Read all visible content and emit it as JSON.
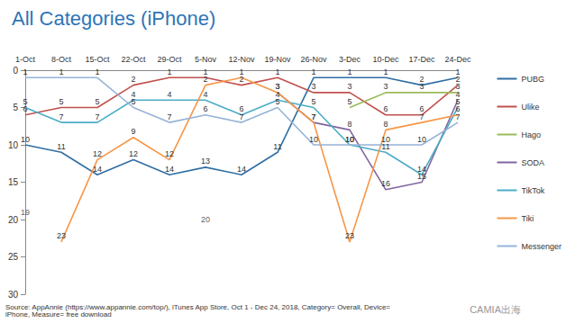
{
  "chart_data": {
    "type": "line",
    "title": "All Categories (iPhone)",
    "footnote": "Source: AppAnnie (https://www.appannie.com/top/), iTunes App Store, Oct 1 - Dec 24, 2018, Category= Overall, Device= iPhone, Measure= free download",
    "watermark": "CAMIA出海",
    "categories": [
      "1-Oct",
      "8-Oct",
      "15-Oct",
      "22-Oct",
      "29-Oct",
      "5-Nov",
      "12-Nov",
      "19-Nov",
      "26-Nov",
      "3-Dec",
      "10-Dec",
      "17-Dec",
      "24-Dec"
    ],
    "series": [
      {
        "name": "PUBG",
        "color": "#2f6ea3",
        "values": [
          10,
          11,
          14,
          12,
          14,
          13,
          14,
          11,
          1,
          1,
          1,
          2,
          1
        ]
      },
      {
        "name": "Ulike",
        "color": "#c0504d",
        "values": [
          6,
          5,
          5,
          2,
          1,
          1,
          2,
          1,
          3,
          3,
          6,
          6,
          2
        ]
      },
      {
        "name": "Hago",
        "color": "#9bbb59",
        "values": [
          null,
          null,
          null,
          null,
          null,
          null,
          null,
          null,
          null,
          5,
          3,
          3,
          3
        ]
      },
      {
        "name": "SODA",
        "color": "#8064a2",
        "values": [
          null,
          null,
          null,
          null,
          null,
          null,
          null,
          3,
          7,
          8,
          16,
          15,
          4
        ]
      },
      {
        "name": "TikTok",
        "color": "#4bacc6",
        "values": [
          5,
          7,
          7,
          4,
          4,
          4,
          6,
          4,
          5,
          10,
          11,
          14,
          5
        ]
      },
      {
        "name": "Tiki",
        "color": "#f79646",
        "values": [
          null,
          23,
          12,
          9,
          12,
          2,
          1,
          3,
          7,
          23,
          8,
          7,
          6
        ]
      },
      {
        "name": "Messenger",
        "color": "#95b3d7",
        "values": [
          1,
          1,
          1,
          5,
          7,
          6,
          7,
          5,
          10,
          10,
          10,
          10,
          7
        ]
      }
    ],
    "annotations": [
      {
        "category": "1-Oct",
        "value": 19,
        "text": "19"
      },
      {
        "category": "5-Nov",
        "value": 20,
        "text": "20"
      }
    ],
    "ylim": [
      0,
      30
    ],
    "yticks": [
      0,
      5,
      10,
      15,
      20,
      25,
      30
    ],
    "grid": false,
    "data_labels": true,
    "legend": "right"
  }
}
